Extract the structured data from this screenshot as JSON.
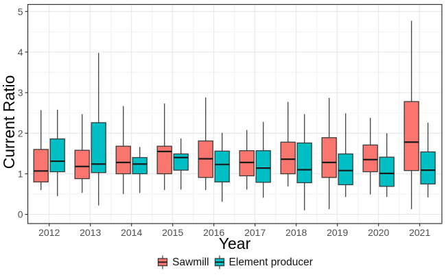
{
  "chart_data": {
    "type": "boxplot",
    "title": "",
    "xlabel": "Year",
    "ylabel": "Current Ratio",
    "ylim": [
      0,
      5
    ],
    "yticks": [
      0,
      1,
      2,
      3,
      4,
      5
    ],
    "grid": "major-and-minor",
    "legend_position": "bottom-center",
    "categories": [
      "2012",
      "2013",
      "2014",
      "2015",
      "2016",
      "2017",
      "2018",
      "2019",
      "2020",
      "2021"
    ],
    "series": [
      {
        "name": "Sawmill",
        "fill": "#F8766D",
        "stats": [
          {
            "min": 0.6,
            "q1": 0.8,
            "median": 1.07,
            "q3": 1.6,
            "max": 2.57
          },
          {
            "min": 0.53,
            "q1": 0.88,
            "median": 1.18,
            "q3": 1.58,
            "max": 2.47
          },
          {
            "min": 0.5,
            "q1": 1.0,
            "median": 1.28,
            "q3": 1.68,
            "max": 2.67
          },
          {
            "min": 0.6,
            "q1": 1.0,
            "median": 1.55,
            "q3": 1.68,
            "max": 2.73
          },
          {
            "min": 0.6,
            "q1": 0.91,
            "median": 1.37,
            "q3": 1.81,
            "max": 2.88
          },
          {
            "min": 0.61,
            "q1": 0.95,
            "median": 1.28,
            "q3": 1.57,
            "max": 2.08
          },
          {
            "min": 0.69,
            "q1": 1.0,
            "median": 1.36,
            "q3": 1.78,
            "max": 2.77
          },
          {
            "min": 0.13,
            "q1": 0.91,
            "median": 1.28,
            "q3": 1.89,
            "max": 2.87
          },
          {
            "min": 0.49,
            "q1": 1.05,
            "median": 1.35,
            "q3": 1.71,
            "max": 2.38
          },
          {
            "min": 0.13,
            "q1": 1.08,
            "median": 1.78,
            "q3": 2.78,
            "max": 4.77
          }
        ]
      },
      {
        "name": "Element producer",
        "fill": "#00BFC4",
        "stats": [
          {
            "min": 0.45,
            "q1": 1.05,
            "median": 1.31,
            "q3": 1.86,
            "max": 2.58
          },
          {
            "min": 0.22,
            "q1": 1.03,
            "median": 1.24,
            "q3": 2.26,
            "max": 3.98
          },
          {
            "min": 0.53,
            "q1": 1.0,
            "median": 1.24,
            "q3": 1.4,
            "max": 1.66
          },
          {
            "min": 0.61,
            "q1": 1.09,
            "median": 1.4,
            "q3": 1.49,
            "max": 1.87
          },
          {
            "min": 0.31,
            "q1": 0.8,
            "median": 1.23,
            "q3": 1.56,
            "max": 2.01
          },
          {
            "min": 0.41,
            "q1": 0.79,
            "median": 1.14,
            "q3": 1.57,
            "max": 2.28
          },
          {
            "min": 0.1,
            "q1": 0.78,
            "median": 1.1,
            "q3": 1.76,
            "max": 2.47
          },
          {
            "min": 0.43,
            "q1": 0.73,
            "median": 1.08,
            "q3": 1.49,
            "max": 2.49
          },
          {
            "min": 0.43,
            "q1": 0.69,
            "median": 1.01,
            "q3": 1.41,
            "max": 2.0
          },
          {
            "min": 0.42,
            "q1": 0.75,
            "median": 1.09,
            "q3": 1.54,
            "max": 2.26
          }
        ]
      }
    ],
    "colors": {
      "background": "#FFFFFF",
      "panel_border": "#333333",
      "grid_major": "#E4E4E4",
      "grid_minor": "#F2F2F2",
      "box_border": "#3A3A3A",
      "median_line": "#1A1A1A",
      "whisker": "#4D4D4D",
      "tick_label": "#4D4D4D",
      "axis_title": "#000000"
    }
  }
}
